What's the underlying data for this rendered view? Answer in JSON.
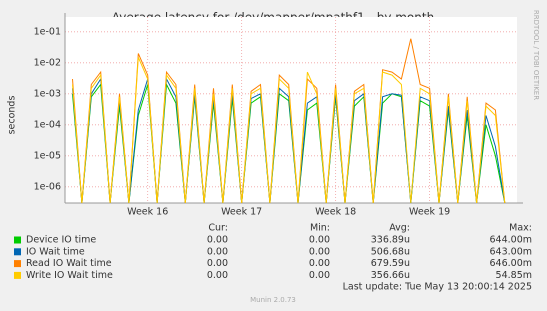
{
  "chart_data": {
    "type": "line",
    "title": "Average latency for /dev/mapper/mpathf1 - by month",
    "y_label": "seconds",
    "log_scale": true,
    "grid": true,
    "side_note": "RRDTOOL / TOBI OETIKER",
    "xlim": [
      15.12,
      19.93
    ],
    "xticks": [
      {
        "value": 16,
        "label": "Week 16"
      },
      {
        "value": 17,
        "label": "Week 17"
      },
      {
        "value": 18,
        "label": "Week 18"
      },
      {
        "value": 19,
        "label": "Week 19"
      }
    ],
    "ylim": [
      3e-07,
      0.3
    ],
    "yticks": [
      {
        "value": 1e-06,
        "label": "1e-06"
      },
      {
        "value": 1e-05,
        "label": "1e-05"
      },
      {
        "value": 0.0001,
        "label": "1e-04"
      },
      {
        "value": 0.001,
        "label": "1e-03"
      },
      {
        "value": 0.01,
        "label": "1e-02"
      },
      {
        "value": 0.1,
        "label": "1e-01"
      }
    ],
    "x": [
      15.2,
      15.3,
      15.4,
      15.5,
      15.6,
      15.7,
      15.8,
      15.9,
      16.0,
      16.1,
      16.2,
      16.3,
      16.4,
      16.5,
      16.6,
      16.7,
      16.8,
      16.9,
      17.0,
      17.1,
      17.2,
      17.3,
      17.4,
      17.5,
      17.6,
      17.7,
      17.8,
      17.9,
      18.0,
      18.1,
      18.2,
      18.3,
      18.4,
      18.5,
      18.6,
      18.7,
      18.8,
      18.9,
      19.0,
      19.1,
      19.2,
      19.3,
      19.4,
      19.5,
      19.6,
      19.7,
      19.8
    ],
    "series": [
      {
        "name": "Device IO time",
        "color": "#00cc00",
        "values": [
          0.001,
          3e-07,
          0.0008,
          0.002,
          3e-07,
          0.0004,
          3e-07,
          0.0002,
          0.002,
          3e-07,
          0.002,
          0.0005,
          3e-07,
          0.0008,
          3e-07,
          0.0005,
          3e-07,
          0.0007,
          3e-07,
          0.0005,
          0.0008,
          3e-07,
          0.001,
          0.0006,
          3e-07,
          0.0003,
          0.0005,
          3e-07,
          0.0008,
          3e-07,
          0.0004,
          0.0008,
          3e-07,
          0.0005,
          0.001,
          0.0008,
          3e-07,
          0.0006,
          0.0004,
          3e-07,
          0.0003,
          3e-07,
          0.0002,
          3e-07,
          0.0001,
          1e-05,
          3e-07
        ]
      },
      {
        "name": "IO Wait time",
        "color": "#0066b3",
        "values": [
          0.0015,
          3e-07,
          0.001,
          0.003,
          3e-07,
          0.0006,
          3e-07,
          0.0003,
          0.003,
          3e-07,
          0.003,
          0.0008,
          3e-07,
          0.001,
          3e-07,
          0.0007,
          3e-07,
          0.001,
          3e-07,
          0.0007,
          0.001,
          3e-07,
          0.0015,
          0.0008,
          3e-07,
          0.0005,
          0.0008,
          3e-07,
          0.001,
          3e-07,
          0.0006,
          0.001,
          3e-07,
          0.0008,
          0.001,
          0.0009,
          3e-07,
          0.0008,
          0.0006,
          3e-07,
          0.0004,
          3e-07,
          0.0003,
          3e-07,
          0.0002,
          2e-05,
          3e-07
        ]
      },
      {
        "name": "Read IO Wait time",
        "color": "#ff8000",
        "values": [
          0.003,
          3e-07,
          0.002,
          0.005,
          3e-07,
          0.001,
          3e-07,
          0.02,
          0.004,
          3e-07,
          0.005,
          0.002,
          3e-07,
          0.002,
          3e-07,
          0.0015,
          3e-07,
          0.002,
          3e-07,
          0.0012,
          0.002,
          3e-07,
          0.004,
          0.002,
          3e-07,
          0.003,
          0.0015,
          3e-07,
          0.002,
          3e-07,
          0.0012,
          0.002,
          3e-07,
          0.006,
          0.005,
          0.003,
          0.06,
          0.002,
          0.0015,
          3e-07,
          0.001,
          3e-07,
          0.0008,
          3e-07,
          0.0005,
          0.0003,
          3e-07
        ]
      },
      {
        "name": "Write IO Wait time",
        "color": "#ffcc00",
        "values": [
          0.002,
          3e-07,
          0.0015,
          0.004,
          3e-07,
          0.0008,
          3e-07,
          0.015,
          0.003,
          3e-07,
          0.004,
          0.0015,
          3e-07,
          0.0015,
          3e-07,
          0.001,
          3e-07,
          0.0015,
          3e-07,
          0.001,
          0.0015,
          3e-07,
          0.003,
          0.0015,
          3e-07,
          0.005,
          0.001,
          3e-07,
          0.0015,
          3e-07,
          0.001,
          0.0015,
          3e-07,
          0.005,
          0.004,
          0.002,
          3e-07,
          0.0015,
          0.001,
          3e-07,
          0.0008,
          3e-07,
          0.0006,
          3e-07,
          0.0004,
          0.0002,
          3e-07
        ]
      }
    ],
    "legend_headers": [
      "Cur:",
      "Min:",
      "Avg:",
      "Max:"
    ],
    "legend_stats": [
      [
        "0.00",
        "0.00",
        "336.89u",
        "644.00m"
      ],
      [
        "0.00",
        "0.00",
        "506.68u",
        "643.00m"
      ],
      [
        "0.00",
        "0.00",
        "679.59u",
        "646.00m"
      ],
      [
        "0.00",
        "0.00",
        "356.66u",
        "54.85m"
      ]
    ],
    "last_update": "Last update: Tue May 13 20:00:14 2025",
    "footer": "Munin 2.0.73"
  }
}
